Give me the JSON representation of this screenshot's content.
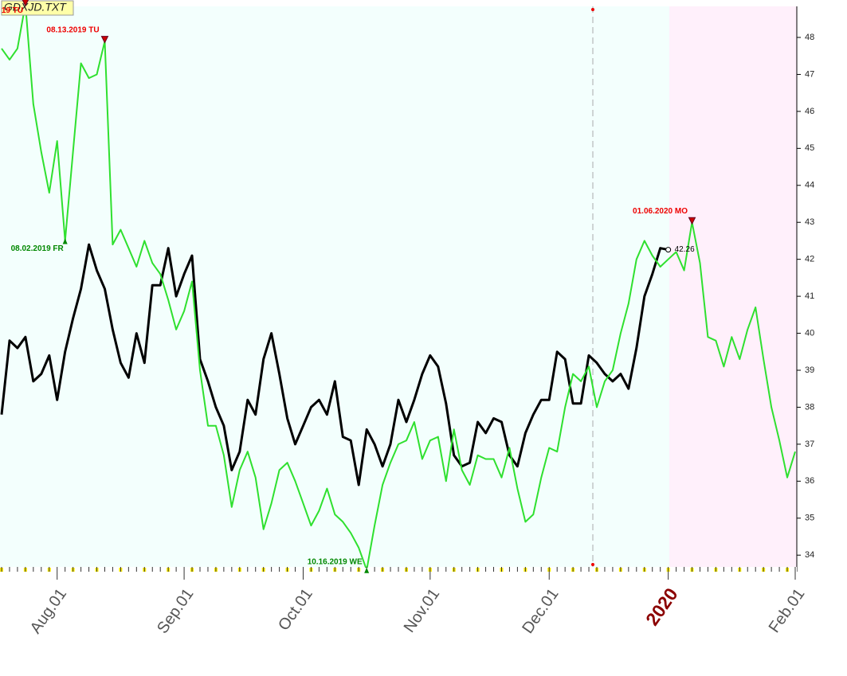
{
  "chart_data": {
    "type": "line",
    "title": "GDXJD.TXT",
    "categories": [
      null,
      null,
      null,
      null,
      null,
      null,
      null,
      "Aug.01",
      null,
      null,
      null,
      null,
      null,
      null,
      null,
      null,
      null,
      null,
      null,
      null,
      null,
      null,
      null,
      "Sep.01",
      null,
      null,
      null,
      null,
      null,
      null,
      null,
      null,
      null,
      null,
      null,
      null,
      null,
      null,
      "Oct.01",
      null,
      null,
      null,
      null,
      null,
      null,
      null,
      null,
      null,
      null,
      null,
      null,
      null,
      null,
      null,
      "Nov.01",
      null,
      null,
      null,
      null,
      null,
      null,
      null,
      null,
      null,
      null,
      null,
      null,
      null,
      null,
      "Dec.01",
      null,
      null,
      null,
      null,
      null,
      null,
      null,
      null,
      null,
      null,
      null,
      null,
      null,
      null,
      "2020",
      null,
      null,
      null,
      null,
      null,
      null,
      null,
      null,
      null,
      null,
      null,
      null,
      null,
      null,
      null,
      "Feb.01"
    ],
    "series": [
      {
        "color": "#2fe02f",
        "values": [
          47.7,
          47.4,
          47.7,
          48.9,
          46.2,
          44.9,
          43.8,
          45.2,
          42.5,
          44.9,
          47.3,
          46.9,
          47.0,
          47.9,
          42.4,
          42.8,
          42.3,
          41.8,
          42.5,
          41.9,
          41.6,
          40.9,
          40.1,
          40.6,
          41.4,
          39.0,
          37.5,
          37.5,
          36.7,
          35.3,
          36.3,
          36.8,
          36.1,
          34.7,
          35.4,
          36.3,
          36.5,
          36.0,
          35.4,
          34.8,
          35.2,
          35.8,
          35.1,
          34.9,
          34.6,
          34.2,
          33.6,
          34.8,
          35.9,
          36.5,
          37.0,
          37.1,
          37.6,
          36.6,
          37.1,
          37.2,
          36.0,
          37.4,
          36.3,
          35.9,
          36.7,
          36.6,
          36.6,
          36.1,
          36.9,
          35.8,
          34.9,
          35.1,
          36.1,
          36.9,
          36.8,
          38.0,
          38.9,
          38.7,
          39.1,
          38.0,
          38.7,
          39.0,
          40.0,
          40.8,
          42.0,
          42.5,
          42.1,
          41.8,
          42.0,
          42.2,
          41.7,
          43.0,
          41.9,
          39.9,
          39.8,
          39.1,
          39.9,
          39.3,
          40.1,
          40.7,
          39.3,
          38.0,
          37.1,
          36.1,
          36.8
        ]
      },
      {
        "color": "#000000",
        "values": [
          37.8,
          39.8,
          39.6,
          39.9,
          38.7,
          38.9,
          39.4,
          38.2,
          39.5,
          40.4,
          41.2,
          42.4,
          41.7,
          41.2,
          40.1,
          39.2,
          38.8,
          40.0,
          39.2,
          41.3,
          41.3,
          42.3,
          41.0,
          41.6,
          42.1,
          39.3,
          38.7,
          38.0,
          37.5,
          36.3,
          36.8,
          38.2,
          37.8,
          39.3,
          40.0,
          38.9,
          37.7,
          37.0,
          37.5,
          38.0,
          38.2,
          37.8,
          38.7,
          37.2,
          37.1,
          35.9,
          37.4,
          37.0,
          36.4,
          37.0,
          38.2,
          37.6,
          38.2,
          38.9,
          39.4,
          39.1,
          38.1,
          36.7,
          36.4,
          36.5,
          37.6,
          37.3,
          37.7,
          37.6,
          36.7,
          36.4,
          37.3,
          37.8,
          38.2,
          38.2,
          39.5,
          39.3,
          38.1,
          38.1,
          39.4,
          39.2,
          38.9,
          38.7,
          38.9,
          38.5,
          39.6,
          41.0,
          41.6,
          42.3,
          42.26,
          null,
          null,
          null,
          null,
          null,
          null,
          null,
          null,
          null,
          null,
          null,
          null,
          null,
          null,
          null,
          null
        ]
      }
    ],
    "annotations": [
      "19 TU",
      "08.13.2019 TU",
      "08.02.2019 FR",
      "10.16.2019 WE",
      "01.06.2020 MO"
    ],
    "ylim": [
      33.66,
      48.84
    ],
    "yticks": [
      34,
      35,
      36,
      37,
      38,
      39,
      40,
      41,
      42,
      43,
      44,
      45,
      46,
      47,
      48
    ]
  }
}
